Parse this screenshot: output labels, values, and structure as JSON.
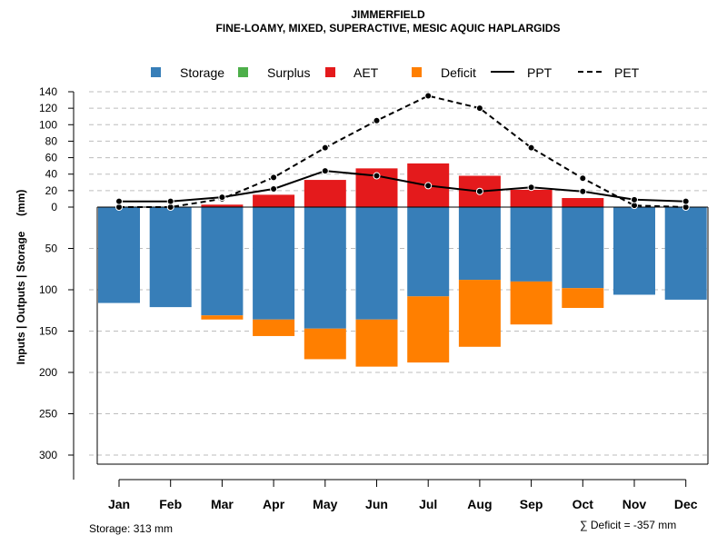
{
  "chart_data": {
    "type": "bar",
    "title": "JIMMERFIELD",
    "subtitle": "FINE-LOAMY, MIXED, SUPERACTIVE, MESIC AQUIC HAPLARGIDS",
    "ylabel": "Inputs | Outputs | Storage     (mm)",
    "categories": [
      "Jan",
      "Feb",
      "Mar",
      "Apr",
      "May",
      "Jun",
      "Jul",
      "Aug",
      "Sep",
      "Oct",
      "Nov",
      "Dec"
    ],
    "upper_ticks": [
      "0",
      "20",
      "40",
      "60",
      "80",
      "100",
      "120",
      "140"
    ],
    "lower_ticks": [
      "50",
      "100",
      "150",
      "200",
      "250",
      "300"
    ],
    "ylim_upper": [
      0,
      140
    ],
    "ylim_lower": [
      0,
      313
    ],
    "legend": {
      "storage": "Storage",
      "surplus": "Surplus",
      "aet": "AET",
      "deficit": "Deficit",
      "ppt": "PPT",
      "pet": "PET"
    },
    "colors": {
      "storage": "#377EB8",
      "surplus": "#4DAF4A",
      "aet": "#E41A1C",
      "deficit": "#FF7F00",
      "line": "#000000"
    },
    "series": [
      {
        "name": "AET",
        "values": [
          0,
          0,
          3,
          15,
          33,
          47,
          53,
          38,
          21,
          11,
          0,
          0
        ]
      },
      {
        "name": "Storage",
        "values": [
          116,
          121,
          131,
          136,
          147,
          136,
          108,
          88,
          90,
          98,
          106,
          112
        ]
      },
      {
        "name": "Deficit",
        "values": [
          0,
          0,
          5,
          20,
          37,
          57,
          80,
          81,
          52,
          24,
          0,
          0
        ]
      },
      {
        "name": "Surplus",
        "values": [
          0,
          0,
          0,
          0,
          0,
          0,
          0,
          0,
          0,
          0,
          0,
          0
        ]
      },
      {
        "name": "PPT",
        "values": [
          7,
          7,
          12,
          22,
          44,
          38,
          26,
          19,
          24,
          19,
          9,
          7
        ]
      },
      {
        "name": "PET",
        "values": [
          0,
          0,
          10,
          36,
          72,
          105,
          135,
          120,
          72,
          35,
          2,
          0
        ]
      }
    ],
    "storage_note": "Storage: 313 mm",
    "deficit_note": "∑ Deficit = -357 mm"
  }
}
